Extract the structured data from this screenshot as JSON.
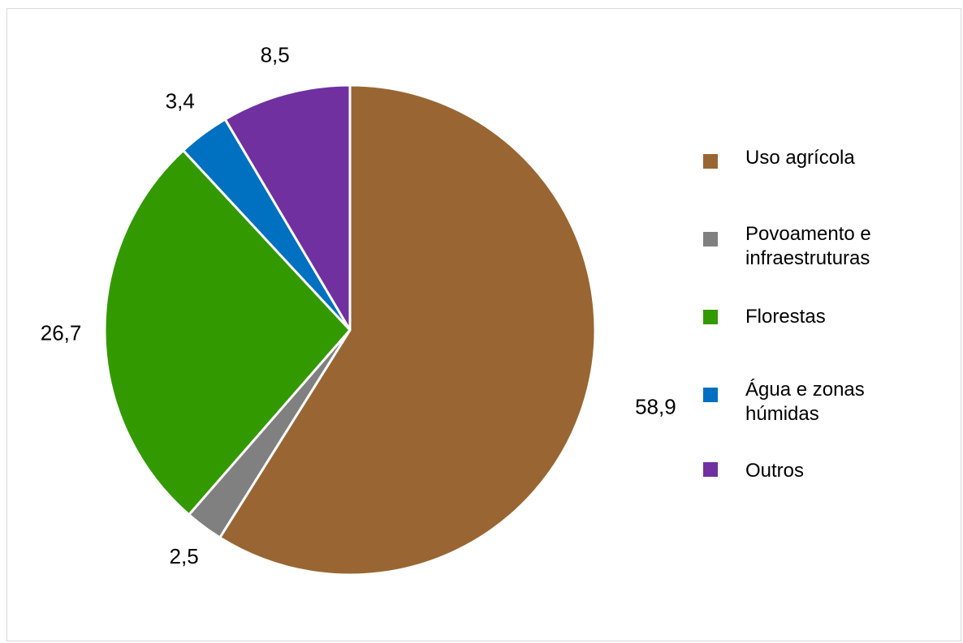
{
  "chart_data": {
    "type": "pie",
    "title": "",
    "slices": [
      {
        "label": "Uso agrícola",
        "value": 58.9,
        "display": "58,9",
        "color": "#996633"
      },
      {
        "label": "Povoamento e infraestruturas",
        "value": 2.5,
        "display": "2,5",
        "color": "#808080"
      },
      {
        "label": "Florestas",
        "value": 26.7,
        "display": "26,7",
        "color": "#339900"
      },
      {
        "label": "Água e zonas húmidas",
        "value": 3.4,
        "display": "3,4",
        "color": "#0070c0"
      },
      {
        "label": "Outros",
        "value": 8.5,
        "display": "8,5",
        "color": "#7030a0"
      }
    ],
    "legend_position": "right",
    "start_angle": "12 o'clock",
    "direction": "clockwise"
  },
  "legend": {
    "items": [
      {
        "line1": "Uso agrícola",
        "line2": "",
        "color": "#996633"
      },
      {
        "line1": "Povoamento e",
        "line2": "infraestruturas",
        "color": "#808080"
      },
      {
        "line1": "Florestas",
        "line2": "",
        "color": "#339900"
      },
      {
        "line1": "Água e zonas",
        "line2": "húmidas",
        "color": "#0070c0"
      },
      {
        "line1": "Outros",
        "line2": "",
        "color": "#7030a0"
      }
    ]
  }
}
